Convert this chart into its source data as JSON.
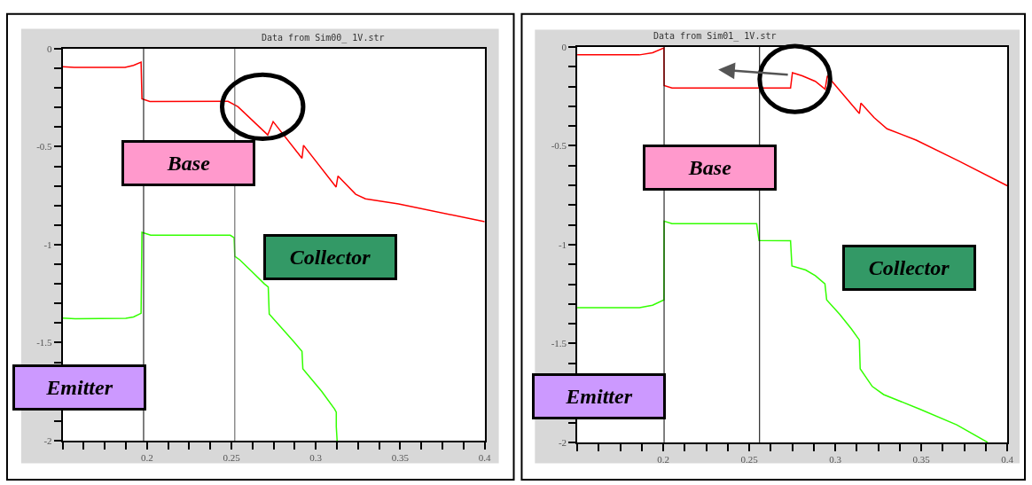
{
  "chart_data": [
    {
      "type": "line",
      "title": "Data from Sim00_ 1V.str",
      "xlim": [
        0.15,
        0.4
      ],
      "ylim": [
        -2,
        0
      ],
      "xticks": [
        {
          "value": 0.15,
          "label": null
        },
        {
          "value": 0.1625,
          "label": null
        },
        {
          "value": 0.175,
          "label": null
        },
        {
          "value": 0.1875,
          "label": null
        },
        0.2,
        {
          "value": 0.2125,
          "label": null
        },
        {
          "value": 0.225,
          "label": null
        },
        {
          "value": 0.2375,
          "label": null
        },
        0.25,
        {
          "value": 0.2625,
          "label": null
        },
        {
          "value": 0.275,
          "label": null
        },
        {
          "value": 0.2875,
          "label": null
        },
        0.3,
        {
          "value": 0.3125,
          "label": null
        },
        {
          "value": 0.325,
          "label": null
        },
        {
          "value": 0.3375,
          "label": null
        },
        0.35,
        {
          "value": 0.3625,
          "label": null
        },
        {
          "value": 0.375,
          "label": null
        },
        {
          "value": 0.3875,
          "label": null
        },
        0.4
      ],
      "yticks": [
        0,
        {
          "value": -0.1,
          "label": null
        },
        {
          "value": -0.2,
          "label": null
        },
        {
          "value": -0.3,
          "label": null
        },
        {
          "value": -0.4,
          "label": null
        },
        -0.5,
        {
          "value": -0.6,
          "label": null
        },
        {
          "value": -0.7,
          "label": null
        },
        {
          "value": -0.8,
          "label": null
        },
        {
          "value": -0.9,
          "label": null
        },
        -1,
        {
          "value": -1.1,
          "label": null
        },
        {
          "value": -1.2,
          "label": null
        },
        {
          "value": -1.3,
          "label": null
        },
        {
          "value": -1.4,
          "label": null
        },
        -1.5,
        {
          "value": -1.6,
          "label": null
        },
        {
          "value": -1.7,
          "label": null
        },
        {
          "value": -1.8,
          "label": null
        },
        {
          "value": -1.9,
          "label": null
        },
        -2
      ],
      "grid": false,
      "marker": "none",
      "line_style": "solid",
      "series": [
        {
          "color": "#ff0000",
          "x": [
            0.15,
            0.157,
            0.187,
            0.192,
            0.1965,
            0.197,
            0.2017,
            0.248,
            0.2539,
            0.2715,
            0.2747,
            0.2918,
            0.2927,
            0.312,
            0.3131,
            0.3236,
            0.3294,
            0.349,
            0.4
          ],
          "values": [
            -0.092,
            -0.095,
            -0.095,
            -0.085,
            -0.069,
            -0.256,
            -0.27,
            -0.269,
            -0.296,
            -0.44,
            -0.372,
            -0.559,
            -0.493,
            -0.706,
            -0.65,
            -0.743,
            -0.766,
            -0.792,
            -0.883
          ]
        },
        {
          "color": "#33ff00",
          "x": [
            0.15,
            0.1575,
            0.1874,
            0.192,
            0.1965,
            0.197,
            0.2022,
            0.2493,
            0.2516,
            0.252,
            0.2549,
            0.2617,
            0.2695,
            0.2718,
            0.2724,
            0.2792,
            0.2869,
            0.2918,
            0.2923,
            0.3034,
            0.3111,
            0.3121,
            0.3121,
            0.3126
          ],
          "values": [
            -1.375,
            -1.378,
            -1.376,
            -1.369,
            -1.35,
            -0.937,
            -0.952,
            -0.952,
            -0.965,
            -1.06,
            -1.077,
            -1.134,
            -1.2,
            -1.216,
            -1.354,
            -1.42,
            -1.495,
            -1.544,
            -1.633,
            -1.748,
            -1.839,
            -1.855,
            -1.929,
            -2.0
          ]
        }
      ],
      "ref_lines": [
        {
          "axis": "x",
          "value": 0.198,
          "color": "#000000"
        },
        {
          "axis": "x",
          "value": 0.252,
          "color": "#555555"
        }
      ],
      "annotations": [
        "Base",
        "Collector",
        "Emitter"
      ]
    },
    {
      "type": "line",
      "title": "Data from Sim01_ 1V.str",
      "xlim": [
        0.15,
        0.4
      ],
      "ylim": [
        -2,
        0
      ],
      "xticks": [
        {
          "value": 0.15,
          "label": null
        },
        {
          "value": 0.1625,
          "label": null
        },
        {
          "value": 0.175,
          "label": null
        },
        {
          "value": 0.1875,
          "label": null
        },
        0.2,
        {
          "value": 0.2125,
          "label": null
        },
        {
          "value": 0.225,
          "label": null
        },
        {
          "value": 0.2375,
          "label": null
        },
        0.25,
        {
          "value": 0.2625,
          "label": null
        },
        {
          "value": 0.275,
          "label": null
        },
        {
          "value": 0.2875,
          "label": null
        },
        0.3,
        {
          "value": 0.3125,
          "label": null
        },
        {
          "value": 0.325,
          "label": null
        },
        {
          "value": 0.3375,
          "label": null
        },
        0.35,
        {
          "value": 0.3625,
          "label": null
        },
        {
          "value": 0.375,
          "label": null
        },
        {
          "value": 0.3875,
          "label": null
        },
        0.4
      ],
      "yticks": [
        0,
        {
          "value": -0.1,
          "label": null
        },
        {
          "value": -0.2,
          "label": null
        },
        {
          "value": -0.3,
          "label": null
        },
        {
          "value": -0.4,
          "label": null
        },
        -0.5,
        {
          "value": -0.6,
          "label": null
        },
        {
          "value": -0.7,
          "label": null
        },
        {
          "value": -0.8,
          "label": null
        },
        {
          "value": -0.9,
          "label": null
        },
        -1,
        {
          "value": -1.1,
          "label": null
        },
        {
          "value": -1.2,
          "label": null
        },
        {
          "value": -1.3,
          "label": null
        },
        {
          "value": -1.4,
          "label": null
        },
        -1.5,
        {
          "value": -1.6,
          "label": null
        },
        {
          "value": -1.7,
          "label": null
        },
        {
          "value": -1.8,
          "label": null
        },
        {
          "value": -1.9,
          "label": null
        },
        -2
      ],
      "grid": false,
      "marker": "none",
      "line_style": "solid",
      "series": [
        {
          "color": "#ff0000",
          "x": [
            0.15,
            0.1862,
            0.1938,
            0.2004,
            0.2005,
            0.2051,
            0.274,
            0.2751,
            0.2808,
            0.2884,
            0.2941,
            0.2954,
            0.3017,
            0.314,
            0.3149,
            0.3225,
            0.3301,
            0.347,
            0.3716,
            0.4
          ],
          "values": [
            -0.04,
            -0.04,
            -0.029,
            -0.005,
            -0.195,
            -0.208,
            -0.208,
            -0.13,
            -0.146,
            -0.174,
            -0.214,
            -0.146,
            -0.211,
            -0.337,
            -0.284,
            -0.357,
            -0.414,
            -0.471,
            -0.576,
            -0.702
          ]
        },
        {
          "color": "#33ff00",
          "x": [
            0.15,
            0.1862,
            0.1938,
            0.2004,
            0.2005,
            0.2051,
            0.2543,
            0.2557,
            0.274,
            0.2748,
            0.2828,
            0.2884,
            0.294,
            0.295,
            0.3026,
            0.3093,
            0.314,
            0.3145,
            0.3215,
            0.3281,
            0.3489,
            0.3706,
            0.3886
          ],
          "values": [
            -1.319,
            -1.319,
            -1.306,
            -1.279,
            -0.881,
            -0.894,
            -0.894,
            -0.979,
            -0.98,
            -1.108,
            -1.128,
            -1.157,
            -1.198,
            -1.279,
            -1.352,
            -1.425,
            -1.482,
            -1.628,
            -1.717,
            -1.758,
            -1.831,
            -1.911,
            -2.0
          ]
        }
      ],
      "ref_lines": [
        {
          "axis": "x",
          "value": 0.2005,
          "color": "#000000"
        },
        {
          "axis": "x",
          "value": 0.256,
          "color": "#000000"
        }
      ],
      "annotations": [
        "Base",
        "Collector",
        "Emitter"
      ]
    }
  ]
}
